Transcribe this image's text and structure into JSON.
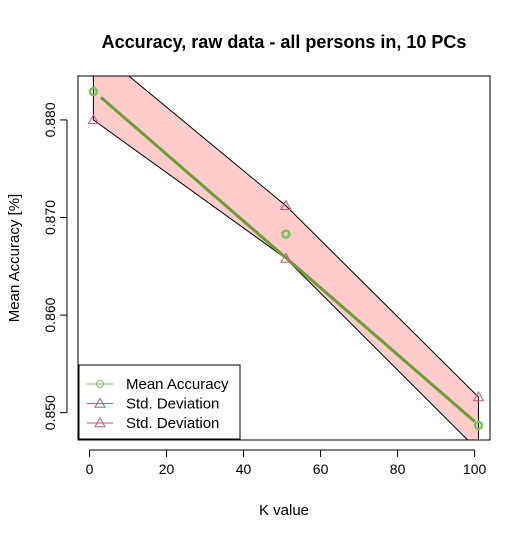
{
  "chart_data": {
    "type": "line",
    "title": "Accuracy, raw data - all persons in, 10 PCs",
    "xlabel": "K value",
    "ylabel": "Mean Accuracy [%]",
    "xlim": [
      -3,
      104
    ],
    "ylim": [
      0.8472,
      0.8845
    ],
    "x_ticks": [
      0,
      20,
      40,
      60,
      80,
      100
    ],
    "x_tick_labels": [
      "0",
      "20",
      "40",
      "60",
      "80",
      "100"
    ],
    "y_ticks": [
      0.85,
      0.86,
      0.87,
      0.88
    ],
    "y_tick_labels": [
      "0.850",
      "0.860",
      "0.870",
      "0.880"
    ],
    "series": [
      {
        "name": "Mean Accuracy",
        "x": [
          1,
          51,
          101
        ],
        "values": [
          0.8829,
          0.8683,
          0.8487
        ],
        "color": "#7fbf5f",
        "marker": "circle"
      },
      {
        "name": "Std. Deviation",
        "x": [
          1,
          51,
          101
        ],
        "values": [
          0.88,
          0.8658,
          0.8461
        ],
        "color": "#c8527a",
        "marker": "triangle"
      },
      {
        "name": "Std. Deviation",
        "x": [
          1,
          51,
          101
        ],
        "values": [
          0.8875,
          0.8712,
          0.8516
        ],
        "color": "#c8527a",
        "marker": "triangle"
      }
    ],
    "band": {
      "fill": "#ffcccc",
      "stroke": "#000000"
    },
    "trend": {
      "x": [
        3,
        100
      ],
      "values": [
        0.8823,
        0.8491
      ],
      "color": "#6e9a38"
    },
    "legend": {
      "position": "bottom-left",
      "entries": [
        {
          "label": "Mean Accuracy",
          "color": "#7fbf5f",
          "marker": "circle"
        },
        {
          "label": "Std. Deviation",
          "color": "#c8527a",
          "marker": "triangle"
        },
        {
          "label": "Std. Deviation",
          "color": "#c8527a",
          "marker": "triangle"
        }
      ]
    },
    "grid": false
  }
}
